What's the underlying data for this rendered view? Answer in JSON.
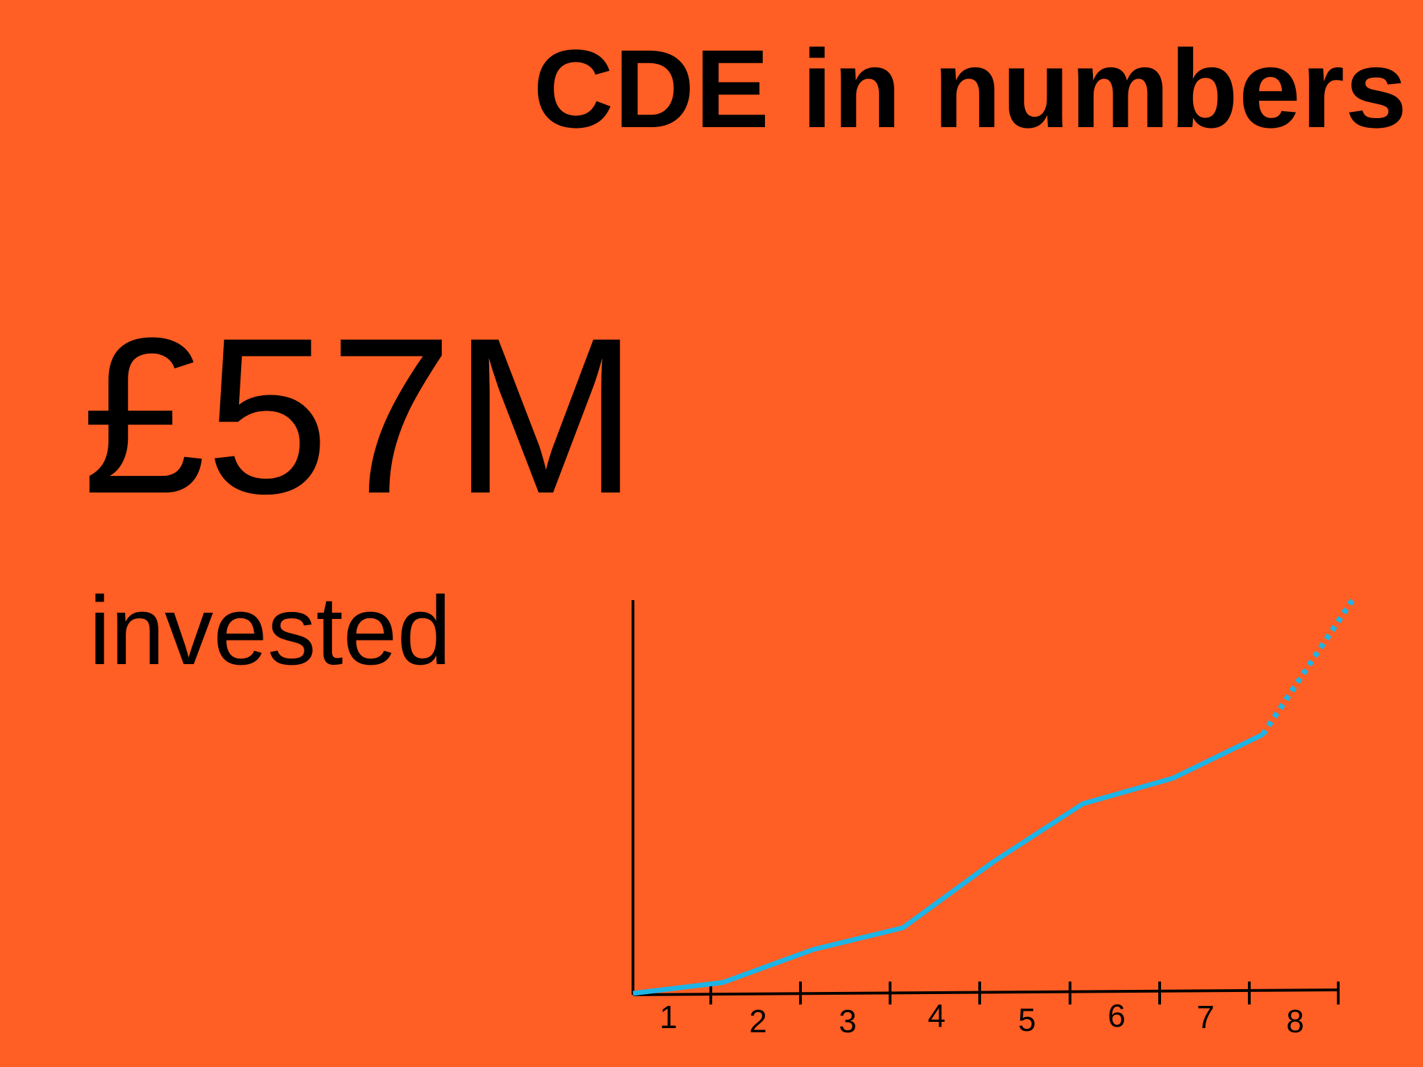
{
  "slide": {
    "title": "CDE in numbers",
    "headline_figure": "£57M",
    "headline_caption": "invested"
  },
  "colors": {
    "background": "#FF5E24",
    "line": "#1EB4E6",
    "axis": "#000000"
  },
  "chart_data": {
    "type": "line",
    "title": "",
    "xlabel": "",
    "ylabel": "",
    "x": [
      1,
      2,
      3,
      4,
      5,
      6,
      7,
      8
    ],
    "categories": [
      "1",
      "2",
      "3",
      "4",
      "5",
      "6",
      "7",
      "8"
    ],
    "ylim": [
      0,
      100
    ],
    "grid": false,
    "series": [
      {
        "style": "solid",
        "points": [
          [
            0,
            0
          ],
          [
            1,
            3
          ],
          [
            2,
            12
          ],
          [
            3,
            18
          ],
          [
            4,
            36
          ],
          [
            5,
            52
          ],
          [
            6,
            59
          ],
          [
            7,
            71
          ]
        ]
      },
      {
        "style": "dotted",
        "points": [
          [
            7,
            71
          ],
          [
            8,
            108
          ]
        ]
      }
    ]
  }
}
